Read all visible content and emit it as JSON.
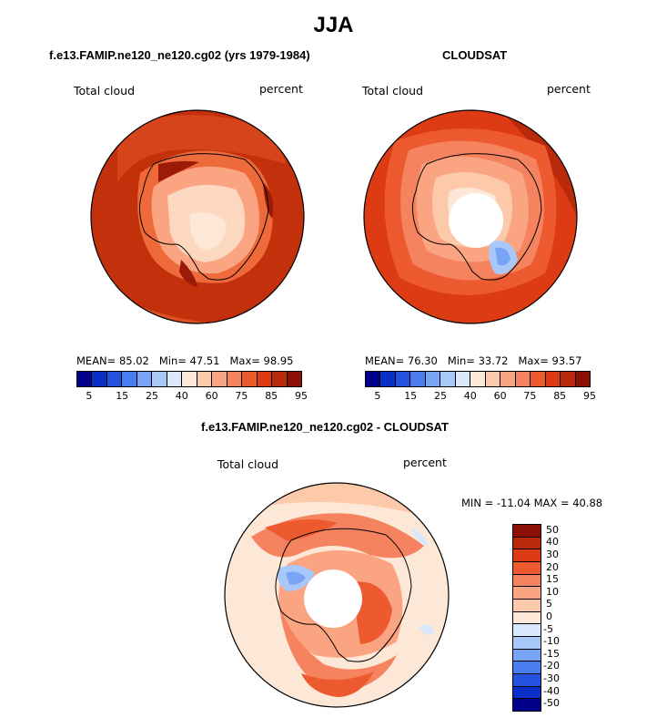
{
  "title": "JJA",
  "panel_left": {
    "subtitle": "f.e13.FAMIP.ne120_ne120.cg02 (yrs 1979-1984)",
    "variable": "Total cloud",
    "units": "percent",
    "stats": {
      "mean_label": "MEAN=",
      "mean": "85.02",
      "min_label": "Min=",
      "min": "47.51",
      "max_label": "Max=",
      "max": "98.95"
    }
  },
  "panel_right": {
    "subtitle": "CLOUDSAT",
    "variable": "Total cloud",
    "units": "percent",
    "stats": {
      "mean_label": "MEAN=",
      "mean": "76.30",
      "min_label": "Min=",
      "min": "33.72",
      "max_label": "Max=",
      "max": "93.57"
    }
  },
  "panel_diff": {
    "subtitle": "f.e13.FAMIP.ne120_ne120.cg02 - CLOUDSAT",
    "variable": "Total cloud",
    "units": "percent",
    "minmax": "MIN = -11.04 MAX =  40.88"
  },
  "colorbar_abs": {
    "colors": [
      "#00008b",
      "#0a2fc8",
      "#2453e0",
      "#4a7ef0",
      "#78a4f5",
      "#a9c8fa",
      "#d9e8fd",
      "#fde8d8",
      "#fdc9ab",
      "#fba482",
      "#f6835f",
      "#ee5a30",
      "#dc3b14",
      "#b82a0a",
      "#8b0f05"
    ],
    "tick_labels": [
      "5",
      "15",
      "25",
      "40",
      "60",
      "75",
      "85",
      "95"
    ]
  },
  "colorbar_diff": {
    "colors": [
      "#8b0f05",
      "#b82a0a",
      "#dc3b14",
      "#ee5a30",
      "#f6835f",
      "#fba482",
      "#fdc9ab",
      "#fde8d8",
      "#d9e8fd",
      "#a9c8fa",
      "#78a4f5",
      "#4a7ef0",
      "#2453e0",
      "#0a2fc8",
      "#00008b"
    ],
    "tick_labels": [
      "50",
      "40",
      "30",
      "20",
      "15",
      "10",
      "5",
      "0",
      "-5",
      "-10",
      "-15",
      "-20",
      "-30",
      "-40",
      "-50"
    ]
  }
}
